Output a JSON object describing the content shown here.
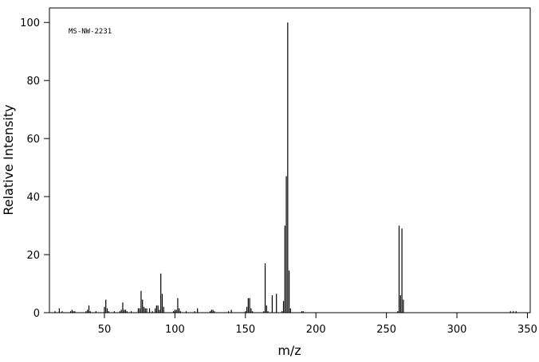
{
  "chart_data": {
    "type": "bar",
    "annotation": "MS-NW-2231",
    "x_label": "m/z",
    "y_label": "Relative Intensity",
    "x": [
      15,
      18,
      20,
      26,
      27,
      28,
      29,
      37,
      38,
      39,
      40,
      44,
      50,
      51,
      52,
      53,
      57,
      61,
      62,
      63,
      64,
      65,
      66,
      69,
      74,
      75,
      76,
      77,
      78,
      79,
      80,
      82,
      84,
      86,
      87,
      88,
      89,
      90,
      91,
      92,
      99,
      100,
      101,
      102,
      103,
      104,
      108,
      114,
      116,
      125,
      126,
      127,
      128,
      138,
      140,
      150,
      151,
      152,
      153,
      154,
      155,
      163,
      164,
      165,
      166,
      169,
      172,
      176,
      177,
      178,
      179,
      180,
      181,
      182,
      190,
      191,
      258,
      259,
      260,
      261,
      262,
      338,
      340,
      342
    ],
    "values": [
      0.5,
      1.5,
      0.5,
      0.5,
      1,
      0.5,
      0.5,
      0.5,
      1,
      2.5,
      0.5,
      0.5,
      2,
      4.5,
      1.5,
      0.5,
      0.5,
      0.5,
      1,
      3.5,
      1,
      1,
      0.5,
      0.5,
      1.5,
      1.5,
      7.5,
      4.5,
      2,
      1.5,
      1.5,
      1.5,
      0.5,
      1.5,
      2.5,
      2.5,
      1,
      13.5,
      6.5,
      2,
      0.5,
      1,
      1,
      5,
      1.5,
      0.5,
      0.5,
      0.5,
      1.5,
      0.5,
      1,
      1,
      0.5,
      0.5,
      1,
      0.5,
      2,
      5,
      5,
      1.5,
      0.5,
      0.5,
      17,
      2.5,
      0.5,
      6,
      6.5,
      0.5,
      4,
      30,
      47,
      100,
      14.5,
      1.5,
      0.5,
      0.5,
      0.5,
      30,
      6,
      29,
      4.5,
      0.5,
      0.5,
      0.5
    ],
    "color": "#000000",
    "xlim": [
      11,
      352
    ],
    "xticks": [
      50,
      100,
      150,
      200,
      250,
      300,
      350
    ],
    "ylim": [
      0,
      105
    ],
    "yticks": [
      0,
      20,
      40,
      60,
      80,
      100
    ]
  }
}
